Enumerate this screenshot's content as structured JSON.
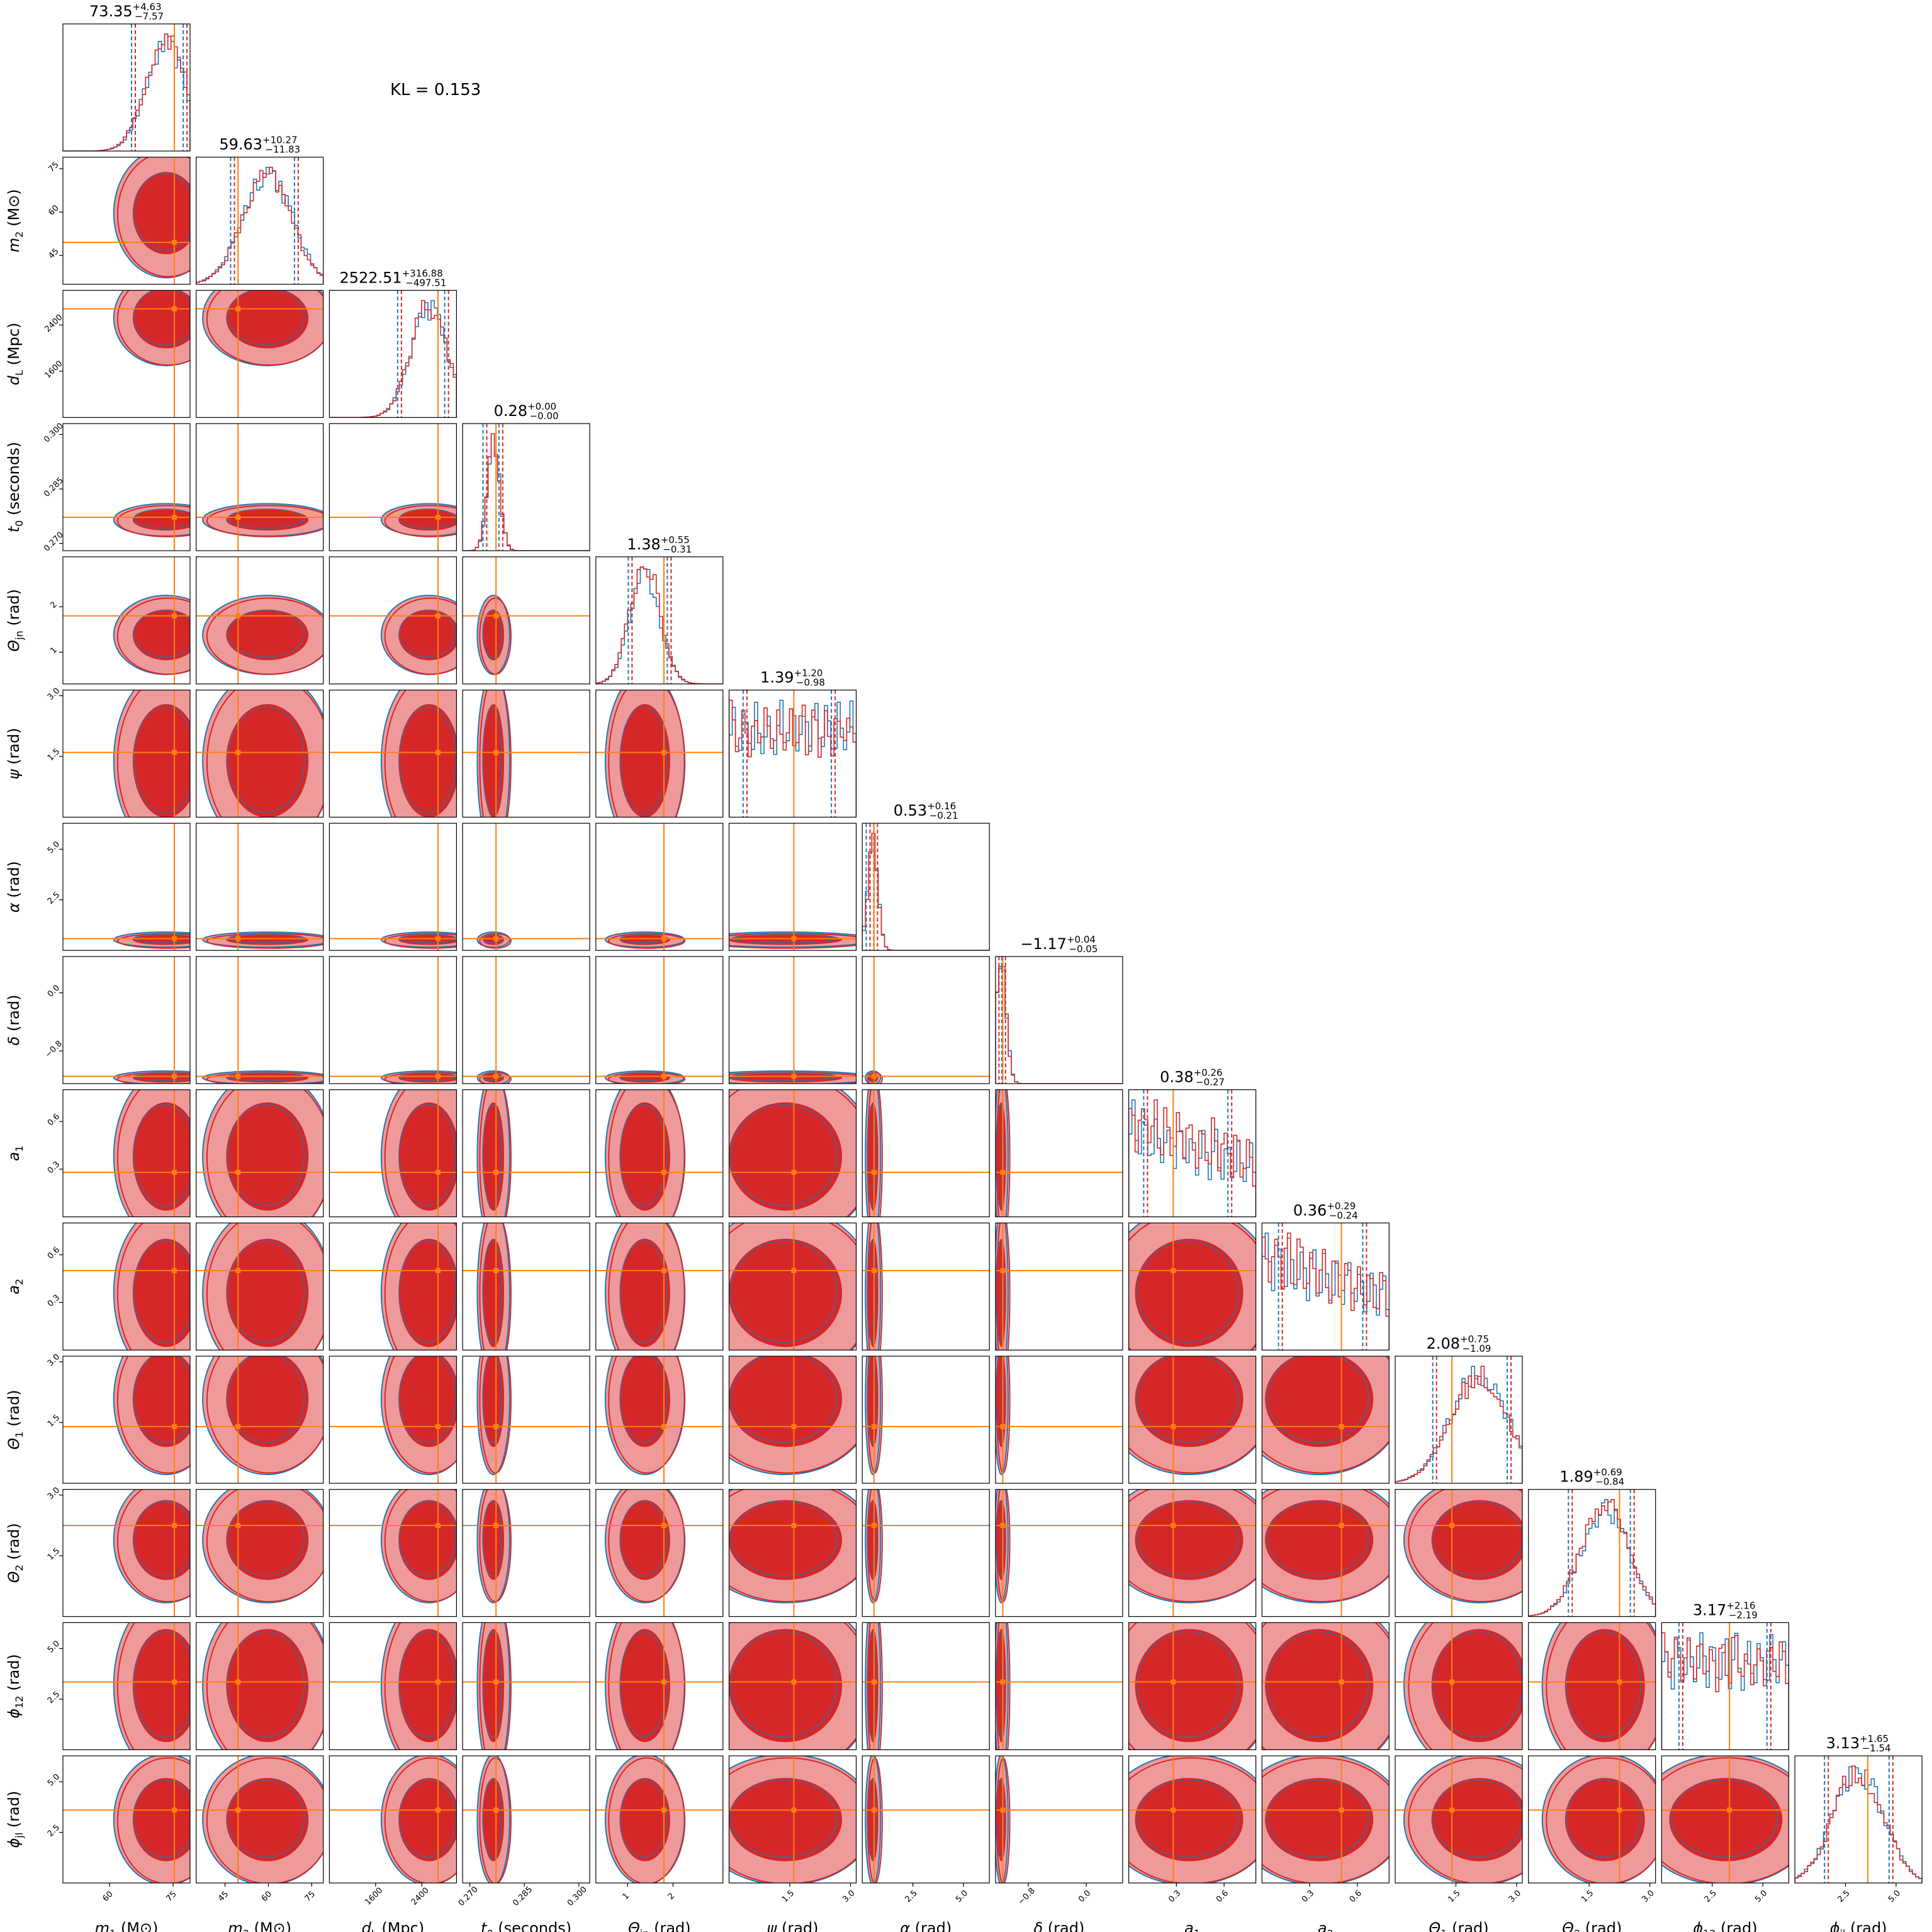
{
  "annotation": "KL = 0.153",
  "colors": {
    "posterior_a": "#1f77b4",
    "posterior_b": "#d62728",
    "injection": "#ff7f0e",
    "fill_light": "#ef9a9a",
    "fill_dark": "#d62728"
  },
  "chart_data": {
    "type": "corner",
    "title": "",
    "legend": "none",
    "params": [
      {
        "name": "m1",
        "label_main": "m",
        "label_sub": "1",
        "label_unit": "(M⊙)",
        "range": [
          49,
          79
        ],
        "ticks": [
          "60",
          "75"
        ],
        "tickvals": [
          60,
          75
        ],
        "inj": 75.3,
        "title": "73.35",
        "plus": "+4.63",
        "minus": "−7.57",
        "median": 73.35,
        "lo": 65.78,
        "hi": 77.98
      },
      {
        "name": "m2",
        "label_main": "m",
        "label_sub": "2",
        "label_unit": "(M⊙)",
        "range": [
          35,
          79
        ],
        "ticks": [
          "45",
          "60",
          "75"
        ],
        "tickvals": [
          45,
          60,
          75
        ],
        "inj": 49.5,
        "title": "59.63",
        "plus": "+10.27",
        "minus": "−11.83",
        "median": 59.63,
        "lo": 47.8,
        "hi": 69.9
      },
      {
        "name": "dL",
        "label_main": "d",
        "label_sub": "L",
        "label_unit": "(Mpc)",
        "range": [
          800,
          3000
        ],
        "ticks": [
          "1600",
          "2400"
        ],
        "tickvals": [
          1600,
          2400
        ],
        "inj": 2680,
        "title": "2522.51",
        "plus": "+316.88",
        "minus": "−497.51",
        "median": 2522.51,
        "lo": 2025,
        "hi": 2839.39
      },
      {
        "name": "t0",
        "label_main": "t",
        "label_sub": "0",
        "label_unit": "(seconds)",
        "range": [
          0.268,
          0.303
        ],
        "ticks": [
          "0.270",
          "0.285",
          "0.300"
        ],
        "tickvals": [
          0.27,
          0.285,
          0.3
        ],
        "inj": 0.2772,
        "title": "0.28",
        "plus": "+0.00",
        "minus": "−0.00",
        "median": 0.2765,
        "lo": 0.2743,
        "hi": 0.2787
      },
      {
        "name": "theta_jn",
        "label_main": "Θ",
        "label_sub": "jn",
        "label_unit": "(rad)",
        "range": [
          0.3,
          3.1
        ],
        "ticks": [
          "1",
          "2"
        ],
        "tickvals": [
          1,
          2
        ],
        "inj": 1.8,
        "title": "1.38",
        "plus": "+0.55",
        "minus": "−0.31",
        "median": 1.38,
        "lo": 1.07,
        "hi": 1.93
      },
      {
        "name": "psi",
        "label_main": "ψ",
        "label_sub": "",
        "label_unit": "(rad)",
        "range": [
          0,
          3.14
        ],
        "ticks": [
          "1.5",
          "3.0"
        ],
        "tickvals": [
          1.5,
          3.0
        ],
        "inj": 1.6,
        "title": "1.39",
        "plus": "+1.20",
        "minus": "−0.98",
        "median": 1.39,
        "lo": 0.41,
        "hi": 2.59
      },
      {
        "name": "alpha",
        "label_main": "α",
        "label_sub": "",
        "label_unit": "(rad)",
        "range": [
          0,
          6.28
        ],
        "ticks": [
          "2.5",
          "5.0"
        ],
        "tickvals": [
          2.5,
          5.0
        ],
        "inj": 0.58,
        "title": "0.53",
        "plus": "+0.16",
        "minus": "−0.21",
        "median": 0.53,
        "lo": 0.32,
        "hi": 0.69
      },
      {
        "name": "delta",
        "label_main": "δ",
        "label_sub": "",
        "label_unit": "(rad)",
        "range": [
          -1.25,
          0.5
        ],
        "ticks": [
          "−0.8",
          "0.0"
        ],
        "tickvals": [
          -0.8,
          0.0
        ],
        "inj": -1.15,
        "title": "−1.17",
        "plus": "+0.04",
        "minus": "−0.05",
        "median": -1.17,
        "lo": -1.22,
        "hi": -1.13
      },
      {
        "name": "a1",
        "label_main": "a",
        "label_sub": "1",
        "label_unit": "",
        "range": [
          0,
          0.8
        ],
        "ticks": [
          "0.3",
          "0.6"
        ],
        "tickvals": [
          0.3,
          0.6
        ],
        "inj": 0.28,
        "title": "0.38",
        "plus": "+0.26",
        "minus": "−0.27",
        "median": 0.38,
        "lo": 0.11,
        "hi": 0.64
      },
      {
        "name": "a2",
        "label_main": "a",
        "label_sub": "2",
        "label_unit": "",
        "range": [
          0,
          0.8
        ],
        "ticks": [
          "0.3",
          "0.6"
        ],
        "tickvals": [
          0.3,
          0.6
        ],
        "inj": 0.5,
        "title": "0.36",
        "plus": "+0.29",
        "minus": "−0.24",
        "median": 0.36,
        "lo": 0.12,
        "hi": 0.65
      },
      {
        "name": "theta1",
        "label_main": "Θ",
        "label_sub": "1",
        "label_unit": "(rad)",
        "range": [
          0,
          3.14
        ],
        "ticks": [
          "1.5",
          "3.0"
        ],
        "tickvals": [
          1.5,
          3.0
        ],
        "inj": 1.4,
        "title": "2.08",
        "plus": "+0.75",
        "minus": "−1.09",
        "median": 2.08,
        "lo": 0.99,
        "hi": 2.83
      },
      {
        "name": "theta2",
        "label_main": "Θ",
        "label_sub": "2",
        "label_unit": "(rad)",
        "range": [
          0,
          3.14
        ],
        "ticks": [
          "1.5",
          "3.0"
        ],
        "tickvals": [
          1.5,
          3.0
        ],
        "inj": 2.25,
        "title": "1.89",
        "plus": "+0.69",
        "minus": "−0.84",
        "median": 1.89,
        "lo": 1.05,
        "hi": 2.58
      },
      {
        "name": "phi12",
        "label_main": "ϕ",
        "label_sub": "12",
        "label_unit": "(rad)",
        "range": [
          0,
          6.28
        ],
        "ticks": [
          "2.5",
          "5.0"
        ],
        "tickvals": [
          2.5,
          5.0
        ],
        "inj": 3.35,
        "title": "3.17",
        "plus": "+2.16",
        "minus": "−2.19",
        "median": 3.17,
        "lo": 0.98,
        "hi": 5.33
      },
      {
        "name": "phi_jl",
        "label_main": "ϕ",
        "label_sub": "jl",
        "label_unit": "(rad)",
        "range": [
          0,
          6.28
        ],
        "ticks": [
          "2.5",
          "5.0"
        ],
        "tickvals": [
          2.5,
          5.0
        ],
        "inj": 3.6,
        "title": "3.13",
        "plus": "+1.65",
        "minus": "−1.54",
        "median": 3.13,
        "lo": 1.59,
        "hi": 4.78
      }
    ]
  }
}
